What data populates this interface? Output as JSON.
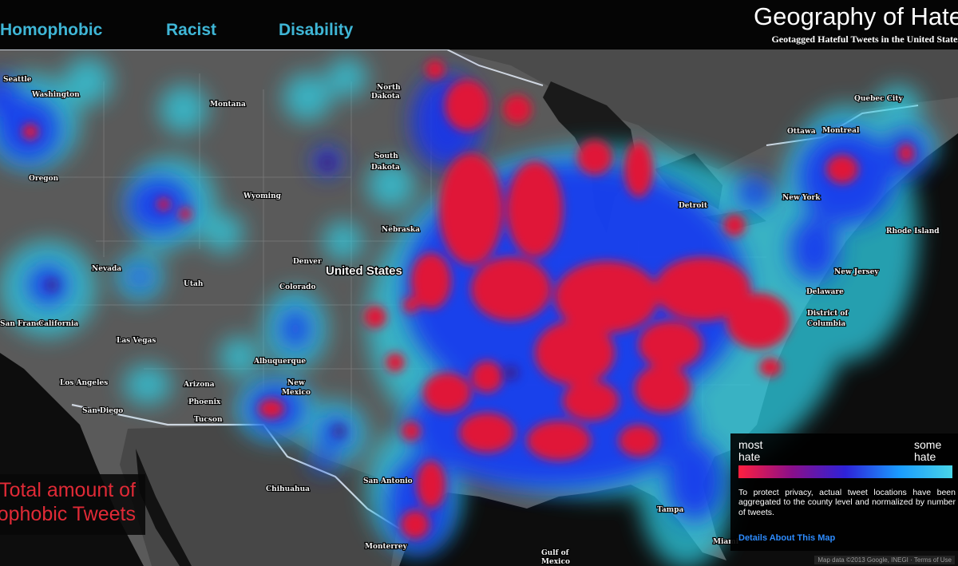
{
  "header": {
    "tabs": [
      {
        "label": "Homophobic"
      },
      {
        "label": "Racist"
      },
      {
        "label": "Disability"
      }
    ],
    "title": "Geography of Hate",
    "subtitle": "Geotagged Hateful Tweets in the United States"
  },
  "caption": {
    "line1": "Total amount of",
    "line2": "Homophobic Tweets"
  },
  "legend": {
    "left_label": "most hate",
    "right_label": "some hate",
    "gradient_colors": [
      "#ff1f3f",
      "#8a0f8a",
      "#2e22d8",
      "#1a9bff",
      "#48d5e8"
    ]
  },
  "privacy_note": "To protect privacy, actual tweet locations have been aggregated to the county level and normalized by number of tweets.",
  "details_link": "Details About This Map",
  "attribution": "Map data ©2013 Google, INEGI · Terms of Use",
  "map_labels": {
    "washington": "Washington",
    "montana": "Montana",
    "north_dakota_1": "North",
    "north_dakota_2": "Dakota",
    "south_dakota_1": "South",
    "south_dakota_2": "Dakota",
    "oregon": "Oregon",
    "wyoming": "Wyoming",
    "nebraska": "Nebraska",
    "nevada": "Nevada",
    "utah": "Utah",
    "denver": "Denver",
    "colorado": "Colorado",
    "united_states": "United States",
    "california": "California",
    "las_vegas": "Las Vegas",
    "albuquerque": "Albuquerque",
    "los_angeles": "Los Angeles",
    "arizona": "Arizona",
    "phoenix": "Phoenix",
    "san_diego": "San Diego",
    "tucson": "Tucson",
    "new_mexico_1": "New",
    "new_mexico_2": "Mexico",
    "chihuahua": "Chihuahua",
    "monterrey": "Monterrey",
    "gulf_1": "Gulf of",
    "gulf_2": "Mexico",
    "ottawa": "Ottawa",
    "montreal": "Montreal",
    "quebec": "Quebec City",
    "rhode_island": "Rhode Island",
    "new_jersey": "New Jersey",
    "delaware": "Delaware",
    "dc_1": "District of",
    "dc_2": "Columbia",
    "tampa": "Tampa",
    "miami": "Miami",
    "seattle": "Seattle",
    "san_francisco": "San Francisco",
    "detroit": "Detroit",
    "new_york": "New York",
    "san_antonio": "San Antonio"
  }
}
